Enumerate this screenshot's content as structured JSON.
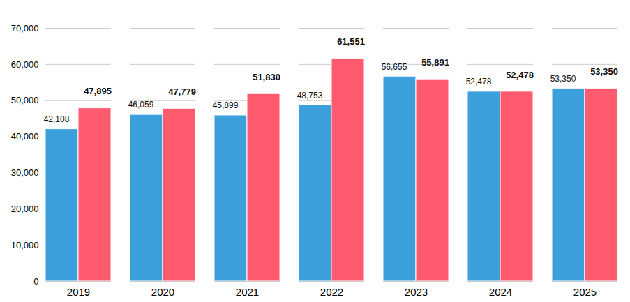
{
  "chart_data": {
    "type": "bar",
    "categories": [
      "2019",
      "2020",
      "2021",
      "2022",
      "2023",
      "2024",
      "2025"
    ],
    "series": [
      {
        "color": "#3a9fdb",
        "values": [
          42108,
          46059,
          45899,
          48753,
          56655,
          52478,
          53350
        ],
        "value_labels": [
          "42,108",
          "46,059",
          "45,899",
          "48,753",
          "56,655",
          "52,478",
          "53,350"
        ]
      },
      {
        "color": "#ff5a6e",
        "values": [
          47895,
          47779,
          51830,
          61551,
          55891,
          52478,
          53350
        ],
        "value_labels": [
          "47,895",
          "47,779",
          "51,830",
          "61,551",
          "55,891",
          "52,478",
          "53,350"
        ]
      }
    ],
    "ylim": [
      0,
      70000
    ],
    "yticks": [
      0,
      {
        "value": 10000,
        "label": "10,000"
      },
      {
        "value": 20000,
        "label": "20,000"
      },
      {
        "value": 30000,
        "label": "30,000"
      },
      {
        "value": 40000,
        "label": "40,000"
      },
      {
        "value": 50000,
        "label": "50,000"
      },
      {
        "value": 60000,
        "label": "60,000"
      },
      {
        "value": 70000,
        "label": "70,000"
      }
    ],
    "grid": true,
    "data_labels": true
  }
}
